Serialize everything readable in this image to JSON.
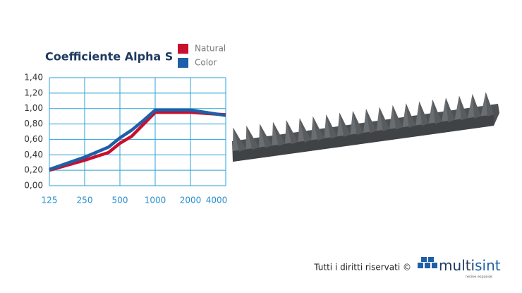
{
  "chart_data": {
    "type": "line",
    "title": "Coefficiente Alpha S",
    "x": [
      125,
      250,
      400,
      500,
      630,
      800,
      1000,
      2000,
      4000
    ],
    "series": [
      {
        "name": "Natural",
        "color": "#c8102e",
        "values": [
          0.2,
          0.33,
          0.43,
          0.55,
          0.64,
          0.8,
          0.95,
          0.95,
          0.92
        ]
      },
      {
        "name": "Color",
        "color": "#1f5fa8",
        "values": [
          0.21,
          0.37,
          0.5,
          0.62,
          0.72,
          0.85,
          0.98,
          0.98,
          0.91
        ]
      }
    ],
    "xlim": [
      125,
      4000
    ],
    "xscale": "log",
    "xticks": [
      125,
      250,
      500,
      1000,
      2000,
      4000
    ],
    "ylim": [
      0,
      1.4
    ],
    "yticks": [
      {
        "value": 0,
        "label": "0,00"
      },
      {
        "value": 0.2,
        "label": "0,20"
      },
      {
        "value": 0.4,
        "label": "0,40"
      },
      {
        "value": 0.6,
        "label": "0,60"
      },
      {
        "value": 0.8,
        "label": "0,80"
      },
      {
        "value": 1.0,
        "label": "1,00"
      },
      {
        "value": 1.2,
        "label": "1,20"
      },
      {
        "value": 1.4,
        "label": "1,40"
      }
    ],
    "grid": true,
    "grid_color": "#2aa0d8",
    "legend": "top-right"
  },
  "footer": {
    "copyright": "Tutti i diritti riservati ©",
    "logo_part1": "multi",
    "logo_part2": "sint",
    "logo_tagline": "resine espanse"
  }
}
